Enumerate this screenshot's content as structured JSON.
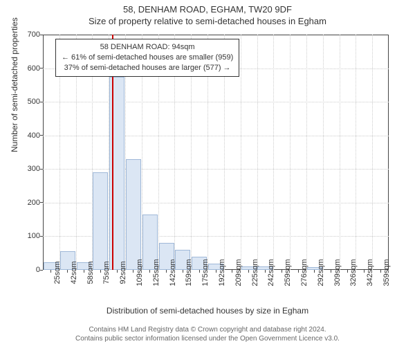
{
  "titles": {
    "main": "58, DENHAM ROAD, EGHAM, TW20 9DF",
    "sub": "Size of property relative to semi-detached houses in Egham"
  },
  "chart": {
    "type": "histogram",
    "ylabel": "Number of semi-detached properties",
    "xlabel": "Distribution of semi-detached houses by size in Egham",
    "ylim": [
      0,
      700
    ],
    "ytick_step": 100,
    "yticks": [
      0,
      100,
      200,
      300,
      400,
      500,
      600,
      700
    ],
    "xticks": [
      "25sqm",
      "42sqm",
      "58sqm",
      "75sqm",
      "92sqm",
      "109sqm",
      "125sqm",
      "142sqm",
      "159sqm",
      "175sqm",
      "192sqm",
      "209sqm",
      "225sqm",
      "242sqm",
      "259sqm",
      "276sqm",
      "292sqm",
      "309sqm",
      "326sqm",
      "342sqm",
      "359sqm"
    ],
    "values": [
      22,
      55,
      22,
      290,
      575,
      330,
      165,
      80,
      60,
      40,
      18,
      0,
      10,
      10,
      0,
      0,
      8,
      0,
      0,
      0,
      0
    ],
    "bar_fill": "#dbe6f4",
    "bar_stroke": "#9fb8d8",
    "grid_color": "#cccccc",
    "border_color": "#444444",
    "background_color": "#ffffff",
    "bar_width_ratio": 0.92
  },
  "marker": {
    "color": "#cc0000",
    "position_bin_index": 4.2,
    "info_box": {
      "line1": "58 DENHAM ROAD: 94sqm",
      "line2": "← 61% of semi-detached houses are smaller (959)",
      "line3": "37% of semi-detached houses are larger (577) →"
    }
  },
  "footer": {
    "line1": "Contains HM Land Registry data © Crown copyright and database right 2024.",
    "line2": "Contains public sector information licensed under the Open Government Licence v3.0."
  }
}
